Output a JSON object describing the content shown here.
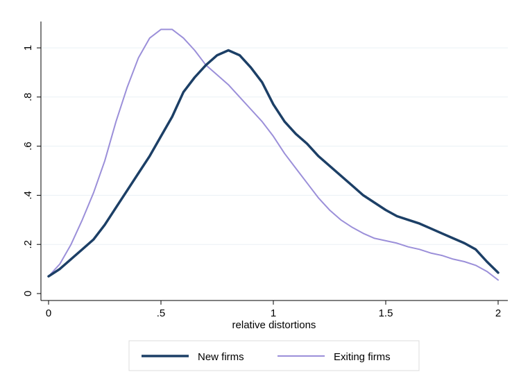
{
  "chart_data": {
    "type": "line",
    "title": "",
    "xlabel": "relative distortions",
    "ylabel": "",
    "xlim": [
      0,
      2
    ],
    "ylim": [
      0,
      1.1
    ],
    "xticks": [
      0,
      0.5,
      1,
      1.5,
      2
    ],
    "xtick_labels": [
      "0",
      ".5",
      "1",
      "1.5",
      "2"
    ],
    "yticks": [
      0,
      0.2,
      0.4,
      0.6,
      0.8,
      1
    ],
    "ytick_labels": [
      "0",
      ".2",
      ".4",
      ".6",
      ".8",
      "1"
    ],
    "grid": true,
    "legend_position": "bottom",
    "series": [
      {
        "name": "New firms",
        "color": "#1c3f66",
        "x": [
          0,
          0.05,
          0.1,
          0.15,
          0.2,
          0.25,
          0.3,
          0.35,
          0.4,
          0.45,
          0.5,
          0.55,
          0.6,
          0.65,
          0.7,
          0.75,
          0.8,
          0.85,
          0.9,
          0.95,
          1.0,
          1.05,
          1.1,
          1.15,
          1.2,
          1.25,
          1.3,
          1.35,
          1.4,
          1.45,
          1.5,
          1.55,
          1.6,
          1.65,
          1.7,
          1.75,
          1.8,
          1.85,
          1.9,
          1.95,
          2.0
        ],
        "y": [
          0.07,
          0.1,
          0.14,
          0.18,
          0.22,
          0.28,
          0.35,
          0.42,
          0.49,
          0.56,
          0.64,
          0.72,
          0.82,
          0.88,
          0.93,
          0.97,
          0.99,
          0.97,
          0.92,
          0.86,
          0.77,
          0.7,
          0.65,
          0.61,
          0.56,
          0.52,
          0.48,
          0.44,
          0.4,
          0.37,
          0.34,
          0.315,
          0.3,
          0.285,
          0.265,
          0.245,
          0.225,
          0.205,
          0.18,
          0.13,
          0.085
        ]
      },
      {
        "name": "Exiting firms",
        "color": "#9b8fd9",
        "x": [
          0,
          0.05,
          0.1,
          0.15,
          0.2,
          0.25,
          0.3,
          0.35,
          0.4,
          0.45,
          0.5,
          0.55,
          0.6,
          0.65,
          0.7,
          0.75,
          0.8,
          0.85,
          0.9,
          0.95,
          1.0,
          1.05,
          1.1,
          1.15,
          1.2,
          1.25,
          1.3,
          1.35,
          1.4,
          1.45,
          1.5,
          1.55,
          1.6,
          1.65,
          1.7,
          1.75,
          1.8,
          1.85,
          1.9,
          1.95,
          2.0
        ],
        "y": [
          0.07,
          0.12,
          0.2,
          0.3,
          0.41,
          0.54,
          0.7,
          0.84,
          0.96,
          1.04,
          1.075,
          1.075,
          1.04,
          0.99,
          0.93,
          0.89,
          0.85,
          0.8,
          0.75,
          0.7,
          0.64,
          0.57,
          0.51,
          0.45,
          0.39,
          0.34,
          0.3,
          0.27,
          0.245,
          0.225,
          0.215,
          0.205,
          0.19,
          0.18,
          0.165,
          0.155,
          0.14,
          0.13,
          0.115,
          0.09,
          0.055
        ]
      }
    ]
  }
}
